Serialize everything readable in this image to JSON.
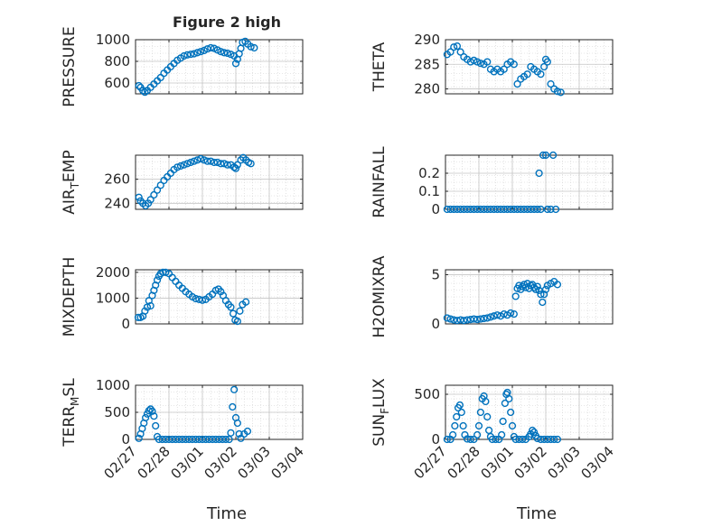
{
  "figure": {
    "title": "Figure 2 high",
    "xlabel": "Time",
    "marker_color": "#0072BD"
  },
  "chart_data": [
    {
      "type": "scatter",
      "ylabel": "PRESSURE",
      "ylim": [
        500,
        1000
      ],
      "yticks": [
        600,
        800,
        1000
      ],
      "grid": true,
      "xticks": [
        "02/27",
        "02/28",
        "03/01",
        "03/02",
        "03/03",
        "03/04"
      ],
      "points": [
        [
          0.1,
          575
        ],
        [
          0.15,
          560
        ],
        [
          0.22,
          530
        ],
        [
          0.28,
          515
        ],
        [
          0.35,
          530
        ],
        [
          0.45,
          560
        ],
        [
          0.55,
          590
        ],
        [
          0.65,
          620
        ],
        [
          0.75,
          650
        ],
        [
          0.85,
          690
        ],
        [
          0.95,
          720
        ],
        [
          1.05,
          750
        ],
        [
          1.15,
          780
        ],
        [
          1.25,
          810
        ],
        [
          1.35,
          830
        ],
        [
          1.45,
          850
        ],
        [
          1.55,
          860
        ],
        [
          1.65,
          865
        ],
        [
          1.75,
          870
        ],
        [
          1.85,
          880
        ],
        [
          1.95,
          890
        ],
        [
          2.05,
          900
        ],
        [
          2.15,
          915
        ],
        [
          2.25,
          925
        ],
        [
          2.35,
          920
        ],
        [
          2.45,
          905
        ],
        [
          2.55,
          890
        ],
        [
          2.65,
          880
        ],
        [
          2.75,
          875
        ],
        [
          2.85,
          865
        ],
        [
          2.95,
          850
        ],
        [
          3.0,
          780
        ],
        [
          3.05,
          820
        ],
        [
          3.1,
          870
        ],
        [
          3.15,
          920
        ],
        [
          3.2,
          975
        ],
        [
          3.28,
          985
        ],
        [
          3.36,
          960
        ],
        [
          3.45,
          935
        ],
        [
          3.55,
          925
        ]
      ]
    },
    {
      "type": "scatter",
      "ylabel": "THETA",
      "ylim": [
        279,
        290
      ],
      "yticks": [
        280,
        285,
        290
      ],
      "grid": true,
      "xticks": [
        "02/27",
        "02/28",
        "03/01",
        "03/02",
        "03/03",
        "03/04"
      ],
      "points": [
        [
          0.05,
          287
        ],
        [
          0.15,
          287.5
        ],
        [
          0.25,
          288.5
        ],
        [
          0.35,
          288.7
        ],
        [
          0.45,
          287.5
        ],
        [
          0.55,
          286.5
        ],
        [
          0.65,
          286
        ],
        [
          0.75,
          285.5
        ],
        [
          0.85,
          285.8
        ],
        [
          0.95,
          285.5
        ],
        [
          1.05,
          285.2
        ],
        [
          1.15,
          285
        ],
        [
          1.25,
          285.5
        ],
        [
          1.35,
          284
        ],
        [
          1.45,
          283.5
        ],
        [
          1.55,
          284
        ],
        [
          1.65,
          283.5
        ],
        [
          1.75,
          284
        ],
        [
          1.85,
          285
        ],
        [
          1.95,
          285.5
        ],
        [
          2.05,
          285
        ],
        [
          2.15,
          281
        ],
        [
          2.25,
          282
        ],
        [
          2.35,
          282.5
        ],
        [
          2.45,
          283
        ],
        [
          2.55,
          284.5
        ],
        [
          2.65,
          284
        ],
        [
          2.75,
          283.5
        ],
        [
          2.85,
          283
        ],
        [
          2.95,
          284.5
        ],
        [
          3.0,
          286
        ],
        [
          3.05,
          285.5
        ],
        [
          3.15,
          281
        ],
        [
          3.25,
          280
        ],
        [
          3.35,
          279.5
        ],
        [
          3.45,
          279.3
        ]
      ]
    },
    {
      "type": "scatter",
      "ylabel": "AIR_TEMP",
      "ylim": [
        235,
        280
      ],
      "yticks": [
        240,
        260
      ],
      "grid": true,
      "xticks": [
        "02/27",
        "02/28",
        "03/01",
        "03/02",
        "03/03",
        "03/04"
      ],
      "points": [
        [
          0.1,
          245
        ],
        [
          0.15,
          242
        ],
        [
          0.22,
          240
        ],
        [
          0.3,
          238
        ],
        [
          0.38,
          240
        ],
        [
          0.45,
          243
        ],
        [
          0.55,
          247
        ],
        [
          0.65,
          251
        ],
        [
          0.75,
          255
        ],
        [
          0.85,
          259
        ],
        [
          0.95,
          262
        ],
        [
          1.05,
          265
        ],
        [
          1.15,
          268
        ],
        [
          1.25,
          270
        ],
        [
          1.35,
          271
        ],
        [
          1.45,
          272
        ],
        [
          1.55,
          273
        ],
        [
          1.65,
          274
        ],
        [
          1.75,
          275
        ],
        [
          1.85,
          276
        ],
        [
          1.95,
          277
        ],
        [
          2.05,
          276
        ],
        [
          2.15,
          275
        ],
        [
          2.25,
          275
        ],
        [
          2.35,
          274
        ],
        [
          2.45,
          274
        ],
        [
          2.55,
          273
        ],
        [
          2.65,
          273
        ],
        [
          2.75,
          272
        ],
        [
          2.85,
          272
        ],
        [
          2.95,
          270
        ],
        [
          3.0,
          269
        ],
        [
          3.05,
          272
        ],
        [
          3.15,
          276
        ],
        [
          3.22,
          278
        ],
        [
          3.3,
          276
        ],
        [
          3.38,
          274
        ],
        [
          3.45,
          273
        ]
      ]
    },
    {
      "type": "scatter",
      "ylabel": "RAINFALL",
      "ylim": [
        0,
        0.3
      ],
      "yticks": [
        0,
        0.1,
        0.2
      ],
      "grid": true,
      "xticks": [
        "02/27",
        "02/28",
        "03/01",
        "03/02",
        "03/03",
        "03/04"
      ],
      "points": [
        [
          0.05,
          0
        ],
        [
          0.15,
          0
        ],
        [
          0.25,
          0
        ],
        [
          0.35,
          0
        ],
        [
          0.45,
          0
        ],
        [
          0.55,
          0
        ],
        [
          0.65,
          0
        ],
        [
          0.75,
          0
        ],
        [
          0.85,
          0
        ],
        [
          0.95,
          0
        ],
        [
          1.05,
          0
        ],
        [
          1.15,
          0
        ],
        [
          1.25,
          0
        ],
        [
          1.35,
          0
        ],
        [
          1.45,
          0
        ],
        [
          1.55,
          0
        ],
        [
          1.65,
          0
        ],
        [
          1.75,
          0
        ],
        [
          1.85,
          0
        ],
        [
          1.95,
          0
        ],
        [
          2.05,
          0
        ],
        [
          2.15,
          0
        ],
        [
          2.25,
          0
        ],
        [
          2.35,
          0
        ],
        [
          2.45,
          0
        ],
        [
          2.55,
          0
        ],
        [
          2.65,
          0
        ],
        [
          2.75,
          0
        ],
        [
          2.8,
          0.2
        ],
        [
          2.85,
          0
        ],
        [
          2.92,
          0.3
        ],
        [
          3.0,
          0.3
        ],
        [
          3.05,
          0
        ],
        [
          3.15,
          0
        ],
        [
          3.22,
          0.3
        ],
        [
          3.3,
          0
        ]
      ]
    },
    {
      "type": "scatter",
      "ylabel": "MIXDEPTH",
      "ylim": [
        0,
        2100
      ],
      "yticks": [
        0,
        1000,
        2000
      ],
      "grid": true,
      "xticks": [
        "02/27",
        "02/28",
        "03/01",
        "03/02",
        "03/03",
        "03/04"
      ],
      "points": [
        [
          0.08,
          250
        ],
        [
          0.15,
          250
        ],
        [
          0.22,
          300
        ],
        [
          0.28,
          500
        ],
        [
          0.35,
          650
        ],
        [
          0.4,
          900
        ],
        [
          0.45,
          700
        ],
        [
          0.5,
          1100
        ],
        [
          0.55,
          1300
        ],
        [
          0.6,
          1500
        ],
        [
          0.65,
          1700
        ],
        [
          0.7,
          1850
        ],
        [
          0.75,
          1950
        ],
        [
          0.82,
          2000
        ],
        [
          0.9,
          2000
        ],
        [
          1.0,
          1950
        ],
        [
          1.1,
          1800
        ],
        [
          1.2,
          1650
        ],
        [
          1.3,
          1500
        ],
        [
          1.4,
          1380
        ],
        [
          1.5,
          1250
        ],
        [
          1.6,
          1150
        ],
        [
          1.7,
          1050
        ],
        [
          1.8,
          980
        ],
        [
          1.9,
          950
        ],
        [
          2.0,
          920
        ],
        [
          2.1,
          950
        ],
        [
          2.2,
          1050
        ],
        [
          2.3,
          1150
        ],
        [
          2.4,
          1300
        ],
        [
          2.48,
          1350
        ],
        [
          2.55,
          1250
        ],
        [
          2.62,
          1100
        ],
        [
          2.7,
          900
        ],
        [
          2.78,
          750
        ],
        [
          2.85,
          650
        ],
        [
          2.92,
          400
        ],
        [
          2.98,
          150
        ],
        [
          3.05,
          100
        ],
        [
          3.12,
          500
        ],
        [
          3.2,
          750
        ],
        [
          3.3,
          850
        ]
      ]
    },
    {
      "type": "scatter",
      "ylabel": "H2OMIXRA",
      "ylim": [
        0,
        5.5
      ],
      "yticks": [
        0,
        5
      ],
      "grid": true,
      "xticks": [
        "02/27",
        "02/28",
        "03/01",
        "03/02",
        "03/03",
        "03/04"
      ],
      "points": [
        [
          0.05,
          0.6
        ],
        [
          0.15,
          0.5
        ],
        [
          0.25,
          0.4
        ],
        [
          0.35,
          0.35
        ],
        [
          0.45,
          0.4
        ],
        [
          0.55,
          0.35
        ],
        [
          0.65,
          0.4
        ],
        [
          0.75,
          0.45
        ],
        [
          0.85,
          0.5
        ],
        [
          0.95,
          0.45
        ],
        [
          1.05,
          0.5
        ],
        [
          1.15,
          0.55
        ],
        [
          1.25,
          0.6
        ],
        [
          1.35,
          0.7
        ],
        [
          1.45,
          0.8
        ],
        [
          1.55,
          0.9
        ],
        [
          1.65,
          0.8
        ],
        [
          1.75,
          1.0
        ],
        [
          1.85,
          0.9
        ],
        [
          1.95,
          1.1
        ],
        [
          2.05,
          1.0
        ],
        [
          2.1,
          2.8
        ],
        [
          2.15,
          3.6
        ],
        [
          2.2,
          3.9
        ],
        [
          2.25,
          3.5
        ],
        [
          2.3,
          3.8
        ],
        [
          2.35,
          4.0
        ],
        [
          2.4,
          3.7
        ],
        [
          2.45,
          4.1
        ],
        [
          2.5,
          3.6
        ],
        [
          2.55,
          3.9
        ],
        [
          2.6,
          4.0
        ],
        [
          2.65,
          3.7
        ],
        [
          2.7,
          3.5
        ],
        [
          2.75,
          3.8
        ],
        [
          2.8,
          3.4
        ],
        [
          2.85,
          3.0
        ],
        [
          2.9,
          2.2
        ],
        [
          2.95,
          3.0
        ],
        [
          3.0,
          3.5
        ],
        [
          3.05,
          3.9
        ],
        [
          3.15,
          4.1
        ],
        [
          3.25,
          4.3
        ],
        [
          3.35,
          4.0
        ]
      ]
    },
    {
      "type": "scatter",
      "ylabel": "TERR_MSL",
      "ylim": [
        0,
        1000
      ],
      "yticks": [
        0,
        500,
        1000
      ],
      "grid": true,
      "xticks": [
        "02/27",
        "02/28",
        "03/01",
        "03/02",
        "03/03",
        "03/04"
      ],
      "points": [
        [
          0.1,
          20
        ],
        [
          0.15,
          100
        ],
        [
          0.2,
          200
        ],
        [
          0.25,
          300
        ],
        [
          0.3,
          400
        ],
        [
          0.35,
          470
        ],
        [
          0.4,
          530
        ],
        [
          0.45,
          560
        ],
        [
          0.5,
          520
        ],
        [
          0.55,
          430
        ],
        [
          0.6,
          250
        ],
        [
          0.65,
          50
        ],
        [
          0.7,
          0
        ],
        [
          0.8,
          0
        ],
        [
          0.9,
          0
        ],
        [
          1.0,
          0
        ],
        [
          1.1,
          0
        ],
        [
          1.2,
          0
        ],
        [
          1.3,
          0
        ],
        [
          1.4,
          0
        ],
        [
          1.5,
          0
        ],
        [
          1.6,
          0
        ],
        [
          1.7,
          0
        ],
        [
          1.8,
          0
        ],
        [
          1.9,
          0
        ],
        [
          2.0,
          0
        ],
        [
          2.1,
          0
        ],
        [
          2.2,
          0
        ],
        [
          2.3,
          0
        ],
        [
          2.4,
          0
        ],
        [
          2.5,
          0
        ],
        [
          2.6,
          0
        ],
        [
          2.7,
          0
        ],
        [
          2.8,
          0
        ],
        [
          2.85,
          120
        ],
        [
          2.9,
          600
        ],
        [
          2.95,
          920
        ],
        [
          3.0,
          400
        ],
        [
          3.05,
          300
        ],
        [
          3.1,
          100
        ],
        [
          3.15,
          20
        ],
        [
          3.25,
          100
        ],
        [
          3.35,
          150
        ]
      ]
    },
    {
      "type": "scatter",
      "ylabel": "SUN_FLUX",
      "ylim": [
        0,
        600
      ],
      "yticks": [
        0,
        500
      ],
      "grid": true,
      "xticks": [
        "02/27",
        "02/28",
        "03/01",
        "03/02",
        "03/03",
        "03/04"
      ],
      "points": [
        [
          0.05,
          0
        ],
        [
          0.15,
          0
        ],
        [
          0.22,
          50
        ],
        [
          0.28,
          150
        ],
        [
          0.33,
          250
        ],
        [
          0.38,
          350
        ],
        [
          0.43,
          380
        ],
        [
          0.48,
          300
        ],
        [
          0.53,
          150
        ],
        [
          0.58,
          50
        ],
        [
          0.65,
          5
        ],
        [
          0.75,
          0
        ],
        [
          0.85,
          0
        ],
        [
          0.95,
          50
        ],
        [
          1.0,
          150
        ],
        [
          1.05,
          300
        ],
        [
          1.1,
          450
        ],
        [
          1.15,
          480
        ],
        [
          1.2,
          420
        ],
        [
          1.25,
          250
        ],
        [
          1.3,
          100
        ],
        [
          1.35,
          30
        ],
        [
          1.4,
          0
        ],
        [
          1.5,
          0
        ],
        [
          1.6,
          0
        ],
        [
          1.68,
          50
        ],
        [
          1.72,
          200
        ],
        [
          1.78,
          400
        ],
        [
          1.82,
          500
        ],
        [
          1.85,
          520
        ],
        [
          1.9,
          450
        ],
        [
          1.95,
          300
        ],
        [
          2.0,
          150
        ],
        [
          2.05,
          30
        ],
        [
          2.1,
          0
        ],
        [
          2.2,
          0
        ],
        [
          2.3,
          0
        ],
        [
          2.4,
          0
        ],
        [
          2.5,
          30
        ],
        [
          2.55,
          60
        ],
        [
          2.6,
          100
        ],
        [
          2.65,
          80
        ],
        [
          2.7,
          40
        ],
        [
          2.75,
          10
        ],
        [
          2.85,
          0
        ],
        [
          2.95,
          0
        ],
        [
          3.05,
          0
        ],
        [
          3.15,
          0
        ],
        [
          3.25,
          0
        ],
        [
          3.35,
          0
        ]
      ]
    }
  ]
}
